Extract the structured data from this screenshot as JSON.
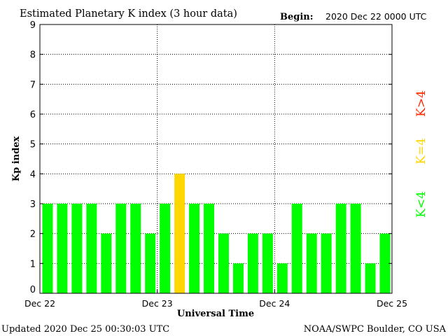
{
  "header": {
    "title": "Estimated Planetary K index (3 hour data)",
    "begin_label": "Begin:",
    "begin_value": "2020 Dec 22 0000 UTC"
  },
  "footer": {
    "updated": "Updated 2020 Dec 25 00:30:03 UTC",
    "credit": "NOAA/SWPC Boulder, CO USA"
  },
  "legend": {
    "items": [
      {
        "label": "K>4",
        "color": "#ff2a00"
      },
      {
        "label": "K=4",
        "color": "#ffd700"
      },
      {
        "label": "K<4",
        "color": "#00ff00"
      }
    ]
  },
  "colors": {
    "below4": "#00ff00",
    "equal4": "#ffd700",
    "above4": "#ff2a00"
  },
  "chart_data": {
    "type": "bar",
    "xlabel": "Universal Time",
    "ylabel": "Kp index",
    "ylim": [
      0,
      9
    ],
    "yticks": [
      "0",
      "1",
      "2",
      "3",
      "4",
      "5",
      "6",
      "7",
      "8",
      "9"
    ],
    "xticks": [
      "Dec 22",
      "Dec 23",
      "Dec 24",
      "Dec 25"
    ],
    "grid": true,
    "values": [
      3,
      3,
      3,
      3,
      2,
      3,
      3,
      2,
      3,
      4,
      3,
      3,
      2,
      1,
      2,
      2,
      1,
      3,
      2,
      2,
      3,
      3,
      1,
      2
    ]
  }
}
